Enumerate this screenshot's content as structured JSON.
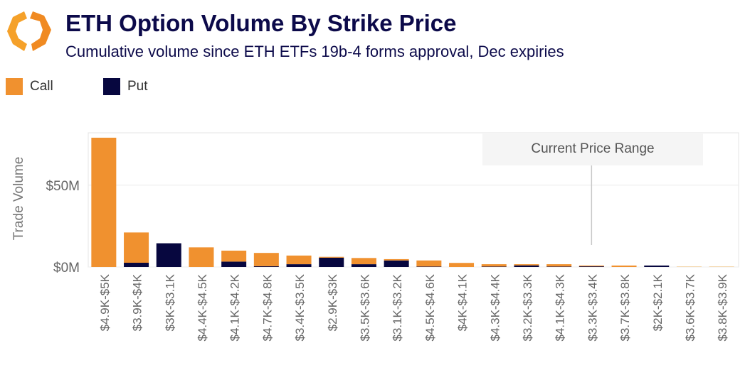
{
  "header": {
    "title": "ETH Option Volume By Strike Price",
    "subtitle": "Cumulative volume since ETH ETFs 19b-4 forms approval, Dec expiries",
    "logo_icon": "orange-hexagon-brackets-logo"
  },
  "colors": {
    "call": "#f0912f",
    "put": "#07073f",
    "faded": "#f3d3a4",
    "title": "#0c0a4a"
  },
  "chart_data": {
    "type": "bar",
    "stacked": true,
    "ylabel": "Trade Volume",
    "xlabel": "",
    "ylim": [
      0,
      82
    ],
    "yticks": [
      {
        "value": 0,
        "label": "$0M"
      },
      {
        "value": 50,
        "label": "$50M"
      }
    ],
    "grid": true,
    "legend_position": "top-left",
    "annotation": {
      "text": "Current Price Range",
      "category": "$3.3K-$3.4K"
    },
    "categories": [
      "$4.9K-$5K",
      "$3.9K-$4K",
      "$3K-$3.1K",
      "$4.4K-$4.5K",
      "$4.1K-$4.2K",
      "$4.7K-$4.8K",
      "$3.4K-$3.5K",
      "$2.9K-$3K",
      "$3.5K-$3.6K",
      "$3.1K-$3.2K",
      "$4.5K-$4.6K",
      "$4K-$4.1K",
      "$4.3K-$4.4K",
      "$3.2K-$3.3K",
      "$4.1K-$4.3K",
      "$3.3K-$3.4K",
      "$3.7K-$3.8K",
      "$2K-$2.1K",
      "$3.6K-$3.7K",
      "$3.8K-$3.9K"
    ],
    "series": [
      {
        "name": "Put",
        "values": [
          0,
          2.6,
          14.5,
          0,
          3.3,
          0.5,
          1.7,
          5.7,
          1.7,
          4.0,
          0.3,
          0,
          0.3,
          1.0,
          0.3,
          0.4,
          0,
          0.9,
          0,
          0
        ]
      },
      {
        "name": "Call",
        "values": [
          79,
          18.5,
          0,
          12,
          6.7,
          8.1,
          5.3,
          0.5,
          3.8,
          0.8,
          3.7,
          2.5,
          1.4,
          0.7,
          1.4,
          0.5,
          0.9,
          0,
          0.4,
          0.4
        ]
      }
    ]
  }
}
